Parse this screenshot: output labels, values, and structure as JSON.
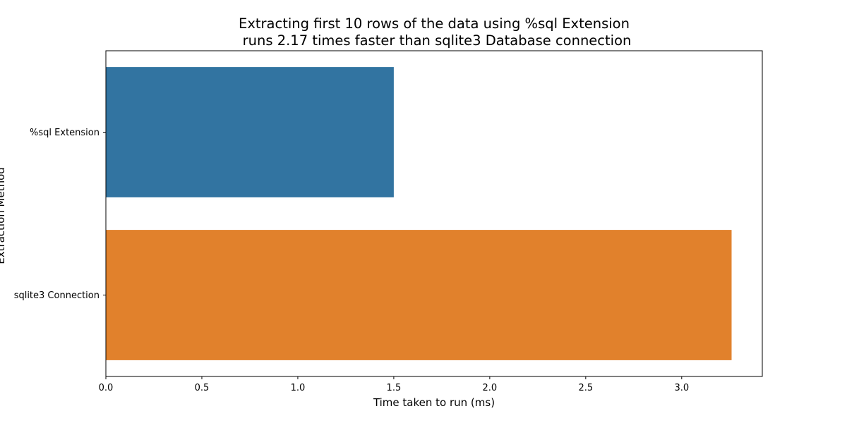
{
  "chart_data": {
    "type": "bar",
    "orientation": "horizontal",
    "title_lines": [
      "Extracting first 10 rows of the data using %sql Extension",
      "runs 2.17 times faster than sqlite3 Database connection"
    ],
    "xlabel": "Time taken to run (ms)",
    "ylabel": "Extraction Method",
    "categories": [
      "%sql Extension",
      "sqlite3 Connection"
    ],
    "values": [
      1.5,
      3.26
    ],
    "colors": [
      "#3274a1",
      "#e1812c"
    ],
    "xlim": [
      0,
      3.42
    ],
    "xticks": [
      0.0,
      0.5,
      1.0,
      1.5,
      2.0,
      2.5,
      3.0
    ],
    "xtick_labels": [
      "0.0",
      "0.5",
      "1.0",
      "1.5",
      "2.0",
      "2.5",
      "3.0"
    ],
    "grid": false,
    "legend": "none"
  }
}
